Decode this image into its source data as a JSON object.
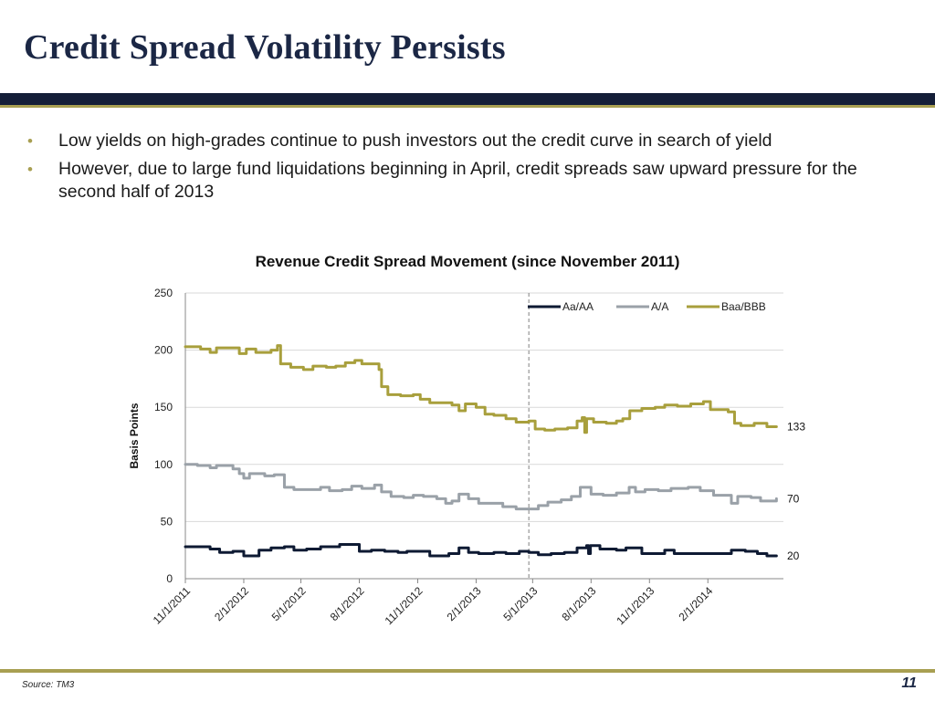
{
  "slide": {
    "title": "Credit Spread Volatility Persists",
    "bullets": [
      "Low yields on high-grades continue to push investors out the credit curve in search of yield",
      "However, due to large fund liquidations beginning in April, credit spreads saw upward pressure for the second half of 2013"
    ],
    "bullet_glyph": "•",
    "source": "Source:  TM3",
    "page_number": "11"
  },
  "colors": {
    "title": "#1b2745",
    "rule_dark": "#141e38",
    "rule_gold": "#a89f52",
    "aa": "#0e1a33",
    "a": "#9aa1a8",
    "bbb": "#a89f3c",
    "divider": "#808080",
    "grid": "#d9d9d9"
  },
  "chart_data": {
    "type": "line",
    "title": "Revenue Credit Spread Movement (since November 2011)",
    "ylabel": "Basis Points",
    "xlabel": "",
    "ylim": [
      0,
      250
    ],
    "yticks": [
      0,
      50,
      100,
      150,
      200,
      250
    ],
    "xlim": [
      "2011-11-01",
      "2014-05-31"
    ],
    "xticks": [
      "2011-11-01",
      "2012-02-01",
      "2012-05-01",
      "2012-08-01",
      "2012-11-01",
      "2013-02-01",
      "2013-05-01",
      "2013-08-01",
      "2013-11-01",
      "2014-02-01"
    ],
    "xtick_labels": [
      "11/1/2011",
      "2/1/2012",
      "5/1/2012",
      "8/1/2012",
      "11/1/2012",
      "2/1/2013",
      "5/1/2013",
      "8/1/2013",
      "11/1/2013",
      "2/1/2014"
    ],
    "grid": true,
    "legend": "top-right",
    "vertical_marker": "2013-04-25",
    "series": [
      {
        "name": "Aa/AA",
        "color": "#0e1a33",
        "end_label": "20",
        "points": [
          [
            "2011-11-01",
            28
          ],
          [
            "2011-11-20",
            28
          ],
          [
            "2011-12-10",
            26
          ],
          [
            "2011-12-25",
            23
          ],
          [
            "2012-01-15",
            24
          ],
          [
            "2012-01-25",
            24
          ],
          [
            "2012-02-01",
            20
          ],
          [
            "2012-02-15",
            20
          ],
          [
            "2012-02-25",
            25
          ],
          [
            "2012-03-15",
            27
          ],
          [
            "2012-04-05",
            28
          ],
          [
            "2012-04-20",
            25
          ],
          [
            "2012-05-10",
            26
          ],
          [
            "2012-06-01",
            28
          ],
          [
            "2012-06-20",
            28
          ],
          [
            "2012-07-01",
            30
          ],
          [
            "2012-07-20",
            30
          ],
          [
            "2012-08-01",
            24
          ],
          [
            "2012-08-20",
            25
          ],
          [
            "2012-09-10",
            24
          ],
          [
            "2012-10-01",
            23
          ],
          [
            "2012-10-15",
            24
          ],
          [
            "2012-11-10",
            24
          ],
          [
            "2012-11-20",
            20
          ],
          [
            "2012-12-10",
            20
          ],
          [
            "2012-12-20",
            22
          ],
          [
            "2013-01-05",
            27
          ],
          [
            "2013-01-20",
            23
          ],
          [
            "2013-02-05",
            22
          ],
          [
            "2013-03-01",
            23
          ],
          [
            "2013-03-20",
            22
          ],
          [
            "2013-04-10",
            24
          ],
          [
            "2013-04-25",
            23
          ],
          [
            "2013-05-10",
            21
          ],
          [
            "2013-05-30",
            22
          ],
          [
            "2013-06-20",
            23
          ],
          [
            "2013-07-10",
            27
          ],
          [
            "2013-07-25",
            29
          ],
          [
            "2013-07-28",
            22
          ],
          [
            "2013-07-31",
            29
          ],
          [
            "2013-08-15",
            26
          ],
          [
            "2013-09-10",
            25
          ],
          [
            "2013-09-25",
            27
          ],
          [
            "2013-10-20",
            22
          ],
          [
            "2013-11-10",
            22
          ],
          [
            "2013-11-25",
            25
          ],
          [
            "2013-12-10",
            22
          ],
          [
            "2014-01-10",
            22
          ],
          [
            "2014-02-10",
            22
          ],
          [
            "2014-03-05",
            22
          ],
          [
            "2014-03-10",
            25
          ],
          [
            "2014-04-01",
            24
          ],
          [
            "2014-04-20",
            22
          ],
          [
            "2014-05-05",
            20
          ],
          [
            "2014-05-20",
            20
          ]
        ]
      },
      {
        "name": "A/A",
        "color": "#9aa1a8",
        "end_label": "70",
        "points": [
          [
            "2011-11-01",
            100
          ],
          [
            "2011-11-20",
            99
          ],
          [
            "2011-12-10",
            97
          ],
          [
            "2011-12-20",
            99
          ],
          [
            "2012-01-15",
            96
          ],
          [
            "2012-01-25",
            92
          ],
          [
            "2012-02-01",
            88
          ],
          [
            "2012-02-10",
            92
          ],
          [
            "2012-03-05",
            90
          ],
          [
            "2012-03-20",
            91
          ],
          [
            "2012-04-05",
            80
          ],
          [
            "2012-04-20",
            78
          ],
          [
            "2012-05-15",
            78
          ],
          [
            "2012-06-01",
            80
          ],
          [
            "2012-06-15",
            77
          ],
          [
            "2012-07-05",
            78
          ],
          [
            "2012-07-20",
            81
          ],
          [
            "2012-08-05",
            79
          ],
          [
            "2012-08-25",
            82
          ],
          [
            "2012-09-05",
            76
          ],
          [
            "2012-09-20",
            72
          ],
          [
            "2012-10-10",
            71
          ],
          [
            "2012-10-25",
            73
          ],
          [
            "2012-11-10",
            72
          ],
          [
            "2012-12-01",
            70
          ],
          [
            "2012-12-15",
            66
          ],
          [
            "2012-12-25",
            68
          ],
          [
            "2013-01-05",
            74
          ],
          [
            "2013-01-20",
            70
          ],
          [
            "2013-02-05",
            66
          ],
          [
            "2013-02-25",
            66
          ],
          [
            "2013-03-15",
            63
          ],
          [
            "2013-04-05",
            61
          ],
          [
            "2013-04-25",
            61
          ],
          [
            "2013-05-10",
            64
          ],
          [
            "2013-05-25",
            67
          ],
          [
            "2013-06-15",
            69
          ],
          [
            "2013-07-01",
            72
          ],
          [
            "2013-07-15",
            80
          ],
          [
            "2013-08-01",
            74
          ],
          [
            "2013-08-20",
            73
          ],
          [
            "2013-09-10",
            75
          ],
          [
            "2013-09-30",
            80
          ],
          [
            "2013-10-10",
            76
          ],
          [
            "2013-10-25",
            78
          ],
          [
            "2013-11-15",
            77
          ],
          [
            "2013-12-05",
            79
          ],
          [
            "2014-01-01",
            80
          ],
          [
            "2014-01-20",
            77
          ],
          [
            "2014-02-10",
            73
          ],
          [
            "2014-02-28",
            73
          ],
          [
            "2014-03-10",
            66
          ],
          [
            "2014-03-20",
            72
          ],
          [
            "2014-04-10",
            71
          ],
          [
            "2014-04-25",
            68
          ],
          [
            "2014-05-20",
            70
          ]
        ]
      },
      {
        "name": "Baa/BBB",
        "color": "#a89f3c",
        "end_label": "133",
        "points": [
          [
            "2011-11-01",
            203
          ],
          [
            "2011-11-25",
            201
          ],
          [
            "2011-12-10",
            198
          ],
          [
            "2011-12-20",
            202
          ],
          [
            "2012-01-10",
            202
          ],
          [
            "2012-01-25",
            197
          ],
          [
            "2012-02-05",
            201
          ],
          [
            "2012-02-20",
            198
          ],
          [
            "2012-03-15",
            200
          ],
          [
            "2012-03-25",
            204
          ],
          [
            "2012-03-30",
            188
          ],
          [
            "2012-04-15",
            185
          ],
          [
            "2012-05-05",
            183
          ],
          [
            "2012-05-20",
            186
          ],
          [
            "2012-06-10",
            185
          ],
          [
            "2012-06-25",
            186
          ],
          [
            "2012-07-10",
            189
          ],
          [
            "2012-07-25",
            191
          ],
          [
            "2012-08-05",
            188
          ],
          [
            "2012-08-20",
            188
          ],
          [
            "2012-09-01",
            183
          ],
          [
            "2012-09-05",
            168
          ],
          [
            "2012-09-15",
            161
          ],
          [
            "2012-10-05",
            160
          ],
          [
            "2012-10-25",
            161
          ],
          [
            "2012-11-05",
            157
          ],
          [
            "2012-11-20",
            154
          ],
          [
            "2012-12-15",
            154
          ],
          [
            "2012-12-25",
            152
          ],
          [
            "2013-01-05",
            147
          ],
          [
            "2013-01-15",
            153
          ],
          [
            "2013-02-01",
            150
          ],
          [
            "2013-02-15",
            144
          ],
          [
            "2013-03-01",
            143
          ],
          [
            "2013-03-20",
            140
          ],
          [
            "2013-04-05",
            137
          ],
          [
            "2013-04-25",
            138
          ],
          [
            "2013-05-05",
            131
          ],
          [
            "2013-05-20",
            130
          ],
          [
            "2013-06-05",
            131
          ],
          [
            "2013-06-25",
            132
          ],
          [
            "2013-07-10",
            138
          ],
          [
            "2013-07-18",
            141
          ],
          [
            "2013-07-22",
            128
          ],
          [
            "2013-07-25",
            140
          ],
          [
            "2013-08-05",
            137
          ],
          [
            "2013-08-25",
            136
          ],
          [
            "2013-09-10",
            138
          ],
          [
            "2013-09-20",
            140
          ],
          [
            "2013-10-01",
            147
          ],
          [
            "2013-10-20",
            149
          ],
          [
            "2013-11-10",
            150
          ],
          [
            "2013-11-25",
            152
          ],
          [
            "2013-12-15",
            151
          ],
          [
            "2014-01-05",
            153
          ],
          [
            "2014-01-25",
            155
          ],
          [
            "2014-02-05",
            148
          ],
          [
            "2014-03-05",
            146
          ],
          [
            "2014-03-15",
            136
          ],
          [
            "2014-03-25",
            134
          ],
          [
            "2014-04-15",
            136
          ],
          [
            "2014-05-05",
            133
          ],
          [
            "2014-05-20",
            133
          ]
        ]
      }
    ]
  }
}
